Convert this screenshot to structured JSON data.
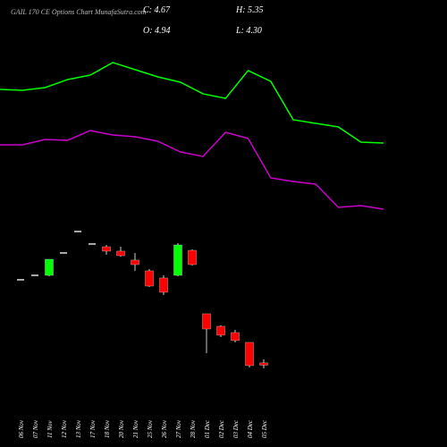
{
  "chart_data": {
    "type": "candlestick",
    "title": "GAIL 170 CE Options Chart MunafaSutra.com",
    "header": {
      "close": "C: 4.67",
      "high": "H: 5.35",
      "open": "O: 4.94",
      "low": "L: 4.30"
    },
    "categories": [
      "06 Nov",
      "07 Nov",
      "11 Nov",
      "12 Nov",
      "13 Nov",
      "17 Nov",
      "18 Nov",
      "20 Nov",
      "21 Nov",
      "25 Nov",
      "26 Nov",
      "27 Nov",
      "28 Nov",
      "01 Dec",
      "02 Dec",
      "03 Dec",
      "04 Dec",
      "05 Dec"
    ],
    "open": [
      14.7,
      15.22,
      15.22,
      17.85,
      20.37,
      18.9,
      18.58,
      18.06,
      17.01,
      15.75,
      14.91,
      15.22,
      18.16,
      10.71,
      9.24,
      8.5,
      7.35,
      4.94
    ],
    "high": [
      14.7,
      15.22,
      17.11,
      17.85,
      20.37,
      18.9,
      18.79,
      18.58,
      17.85,
      15.96,
      15.22,
      19.0,
      18.27,
      10.71,
      9.34,
      8.82,
      7.35,
      5.35
    ],
    "low": [
      14.7,
      15.22,
      15.12,
      17.85,
      20.37,
      18.9,
      17.64,
      17.43,
      15.75,
      13.86,
      12.91,
      15.12,
      16.38,
      6.09,
      7.98,
      7.35,
      4.41,
      4.3
    ],
    "close": [
      14.7,
      15.22,
      17.11,
      17.85,
      20.37,
      18.9,
      18.06,
      17.53,
      16.48,
      13.96,
      13.23,
      18.79,
      16.48,
      8.92,
      8.19,
      7.56,
      4.62,
      4.67
    ],
    "up_color": "#00ff00",
    "down_color": "#ff0000",
    "flat_color": "#e0e0e0",
    "lines": [
      {
        "color": "#00ff00",
        "values": [
          37.06,
          36.96,
          37.27,
          38.22,
          38.74,
          40.21,
          39.37,
          38.53,
          37.9,
          36.54,
          36.01,
          39.27,
          38.01,
          33.49,
          33.07,
          32.65,
          30.87,
          30.76
        ]
      },
      {
        "color": "#cc00cc",
        "values": [
          30.55,
          30.55,
          31.18,
          31.08,
          32.23,
          31.71,
          31.5,
          30.97,
          29.71,
          29.19,
          32.02,
          31.29,
          26.67,
          26.25,
          25.93,
          23.2,
          23.41,
          22.99
        ]
      }
    ],
    "ylim": [
      1.36,
      47.56
    ]
  }
}
